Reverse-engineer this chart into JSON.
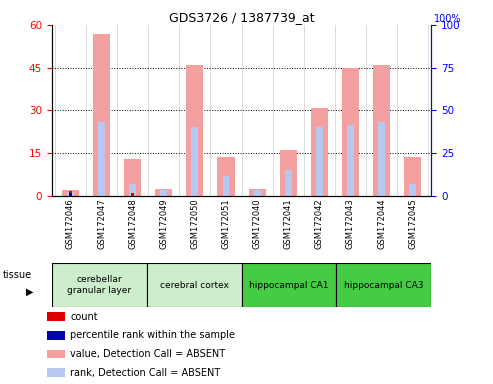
{
  "title": "GDS3726 / 1387739_at",
  "samples": [
    "GSM172046",
    "GSM172047",
    "GSM172048",
    "GSM172049",
    "GSM172050",
    "GSM172051",
    "GSM172040",
    "GSM172041",
    "GSM172042",
    "GSM172043",
    "GSM172044",
    "GSM172045"
  ],
  "value_absent": [
    2.0,
    57.0,
    13.0,
    2.5,
    46.0,
    13.5,
    2.5,
    16.0,
    31.0,
    45.0,
    46.0,
    13.5
  ],
  "rank_absent_pct": [
    1.5,
    26.0,
    4.0,
    2.0,
    24.0,
    7.0,
    2.0,
    9.0,
    24.0,
    25.0,
    26.0,
    4.0
  ],
  "count": [
    1.8,
    0.0,
    1.0,
    0.0,
    0.0,
    0.0,
    0.0,
    0.0,
    0.0,
    0.0,
    0.0,
    0.0
  ],
  "percentile_rank": [
    1.0,
    0.0,
    0.0,
    0.0,
    0.0,
    0.0,
    0.0,
    0.0,
    0.0,
    0.0,
    0.0,
    0.0
  ],
  "tissue_groups": [
    {
      "label": "cerebellar\ngranular layer",
      "start": 0,
      "end": 3,
      "color": "#cceecc"
    },
    {
      "label": "cerebral cortex",
      "start": 3,
      "end": 6,
      "color": "#cceecc"
    },
    {
      "label": "hippocampal CA1",
      "start": 6,
      "end": 9,
      "color": "#44cc44"
    },
    {
      "label": "hippocampal CA3",
      "start": 9,
      "end": 12,
      "color": "#44cc44"
    }
  ],
  "left_yticks": [
    0,
    15,
    30,
    45,
    60
  ],
  "right_yticks": [
    0,
    25,
    50,
    75,
    100
  ],
  "ylim_left": [
    0,
    60
  ],
  "ylim_right": [
    0,
    100
  ],
  "color_value_absent": "#f5a0a0",
  "color_rank_absent": "#b8c8f0",
  "color_count": "#dd0000",
  "color_percentile": "#0000bb",
  "figwidth": 4.93,
  "figheight": 3.84,
  "dpi": 100
}
